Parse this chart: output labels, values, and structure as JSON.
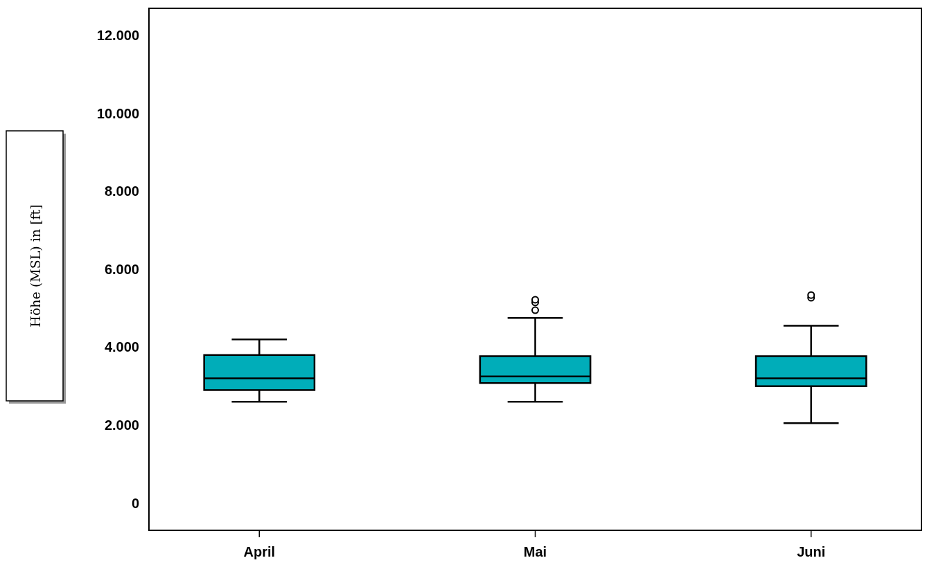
{
  "chart_data": {
    "type": "box",
    "ylabel": "Höhe (MSL) in [ft]",
    "categories": [
      "April",
      "Mai",
      "Juni"
    ],
    "color": "#00adb9",
    "ylim": [
      -700,
      12700
    ],
    "yticks": [
      0,
      {
        "value": 2000,
        "label": "2.000"
      },
      {
        "value": 4000,
        "label": "4.000"
      },
      {
        "value": 6000,
        "label": "6.000"
      },
      {
        "value": 8000,
        "label": "8.000"
      },
      {
        "value": 10000,
        "label": "10.000"
      },
      {
        "value": 12000,
        "label": "12.000"
      }
    ],
    "grid": false,
    "boxes": [
      {
        "low": 2600,
        "q1": 2900,
        "median": 3200,
        "q3": 3800,
        "high": 4200
      },
      {
        "low": 2600,
        "q1": 3080,
        "median": 3250,
        "q3": 3770,
        "high": 4750,
        "outliers": [
          4950,
          5150,
          5220
        ]
      },
      {
        "low": 2050,
        "q1": 3000,
        "median": 3200,
        "q3": 3770,
        "high": 4550,
        "outliers": [
          5270,
          5340
        ]
      }
    ]
  }
}
